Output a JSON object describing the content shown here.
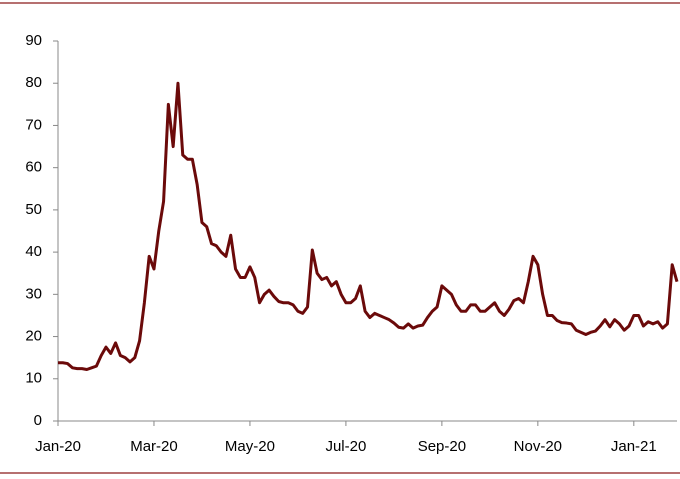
{
  "chart_data": {
    "type": "line",
    "categories": [
      "Jan-20",
      null,
      null,
      null,
      null,
      null,
      null,
      null,
      null,
      null,
      null,
      null,
      null,
      null,
      null,
      null,
      null,
      null,
      null,
      null,
      "Mar-20",
      null,
      null,
      null,
      null,
      null,
      null,
      null,
      null,
      null,
      null,
      null,
      null,
      null,
      null,
      null,
      null,
      null,
      null,
      null,
      "May-20",
      null,
      null,
      null,
      null,
      null,
      null,
      null,
      null,
      null,
      null,
      null,
      null,
      null,
      null,
      null,
      null,
      null,
      null,
      null,
      "Jul-20",
      null,
      null,
      null,
      null,
      null,
      null,
      null,
      null,
      null,
      null,
      null,
      null,
      null,
      null,
      null,
      null,
      null,
      null,
      null,
      "Sep-20",
      null,
      null,
      null,
      null,
      null,
      null,
      null,
      null,
      null,
      null,
      null,
      null,
      null,
      null,
      null,
      null,
      null,
      null,
      null,
      "Nov-20",
      null,
      null,
      null,
      null,
      null,
      null,
      null,
      null,
      null,
      null,
      null,
      null,
      null,
      null,
      null,
      null,
      null,
      null,
      null,
      "Jan-21",
      null,
      null,
      null,
      null,
      null,
      null,
      null,
      null,
      null
    ],
    "values": [
      13.8,
      13.8,
      13.6,
      12.6,
      12.4,
      12.4,
      12.2,
      12.6,
      13,
      15.5,
      17.5,
      16,
      18.5,
      15.5,
      15,
      14,
      15,
      19,
      28,
      39,
      36,
      45,
      52,
      75,
      65,
      80,
      63,
      62,
      62,
      56,
      47,
      46,
      42,
      41.5,
      40,
      39,
      44,
      36,
      34,
      34,
      36.5,
      34,
      28,
      30,
      31,
      29.5,
      28.3,
      28,
      28,
      27.5,
      26,
      25.5,
      27,
      40.5,
      35,
      33.5,
      34,
      32,
      33,
      30,
      28,
      28,
      29,
      32,
      26,
      24.5,
      25.5,
      25,
      24.5,
      24,
      23.2,
      22.2,
      22,
      23,
      22,
      22.5,
      22.7,
      24.5,
      26,
      27,
      32,
      31,
      30,
      27.5,
      26,
      26,
      27.5,
      27.5,
      26,
      26,
      27,
      28,
      26,
      25,
      26.5,
      28.5,
      29,
      28,
      33,
      39,
      37,
      30,
      25,
      25,
      23.8,
      23.3,
      23.2,
      23,
      21.5,
      21,
      20.5,
      21,
      21.3,
      22.5,
      24,
      22.3,
      24,
      23,
      21.5,
      22.5,
      25,
      25,
      22.5,
      23.5,
      23,
      23.5,
      22,
      23,
      37,
      33
    ],
    "color": "#6b0a0a",
    "ylim": [
      0,
      90
    ],
    "yticks": [
      0,
      10,
      20,
      30,
      40,
      50,
      60,
      70,
      80,
      90
    ]
  }
}
